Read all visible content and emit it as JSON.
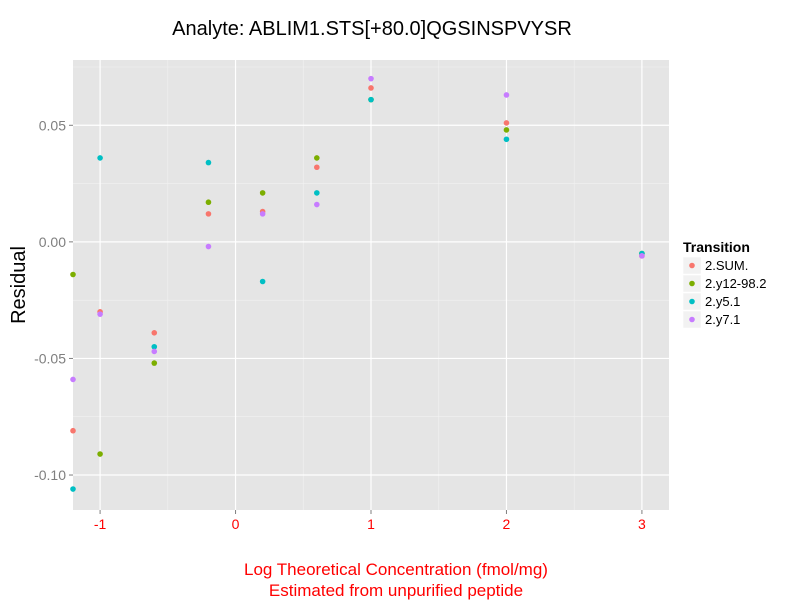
{
  "chart_data": {
    "type": "scatter",
    "title": "Analyte: ABLIM1.STS[+80.0]QGSINSPVYSR",
    "xlabel": [
      "Log Theoretical Concentration (fmol/mg)",
      "Estimated from unpurified peptide"
    ],
    "ylabel": "Residual",
    "xlim": [
      -1.2,
      3.2
    ],
    "ylim": [
      -0.115,
      0.078
    ],
    "x_ticks": [
      -1,
      0,
      1,
      2,
      3
    ],
    "x_tick_labels": [
      "-1",
      "0",
      "1",
      "2",
      "3"
    ],
    "y_ticks": [
      -0.1,
      -0.05,
      0,
      0.05
    ],
    "y_tick_labels": [
      "-0.10",
      "-0.05",
      "0.00",
      "0.05"
    ],
    "axis_label_color": "#ff0000",
    "grid": true,
    "legend": {
      "title": "Transition",
      "placement": "right"
    },
    "series": [
      {
        "name": "2.SUM.",
        "color": "#f8766d",
        "points": [
          [
            -1.2,
            -0.081
          ],
          [
            -1.0,
            -0.03
          ],
          [
            -0.6,
            -0.039
          ],
          [
            -0.2,
            0.012
          ],
          [
            0.2,
            0.013
          ],
          [
            0.6,
            0.032
          ],
          [
            1.0,
            0.066
          ],
          [
            2.0,
            0.051
          ],
          [
            3.0,
            -0.006
          ]
        ]
      },
      {
        "name": "2.y12-98.2",
        "color": "#7cae00",
        "points": [
          [
            -1.2,
            -0.014
          ],
          [
            -1.0,
            -0.091
          ],
          [
            -0.6,
            -0.052
          ],
          [
            -0.2,
            0.017
          ],
          [
            0.2,
            0.021
          ],
          [
            0.6,
            0.036
          ],
          [
            1.0,
            0.061
          ],
          [
            2.0,
            0.048
          ],
          [
            3.0,
            -0.005
          ]
        ]
      },
      {
        "name": "2.y5.1",
        "color": "#00bfc4",
        "points": [
          [
            -1.2,
            -0.106
          ],
          [
            -1.0,
            0.036
          ],
          [
            -0.6,
            -0.045
          ],
          [
            -0.2,
            0.034
          ],
          [
            0.2,
            -0.017
          ],
          [
            0.6,
            0.021
          ],
          [
            1.0,
            0.061
          ],
          [
            2.0,
            0.044
          ],
          [
            3.0,
            -0.005
          ]
        ]
      },
      {
        "name": "2.y7.1",
        "color": "#c77cff",
        "points": [
          [
            -1.2,
            -0.059
          ],
          [
            -1.0,
            -0.031
          ],
          [
            -0.6,
            -0.047
          ],
          [
            -0.2,
            -0.002
          ],
          [
            0.2,
            0.012
          ],
          [
            0.6,
            0.016
          ],
          [
            1.0,
            0.07
          ],
          [
            2.0,
            0.063
          ],
          [
            3.0,
            -0.006
          ]
        ]
      }
    ]
  }
}
